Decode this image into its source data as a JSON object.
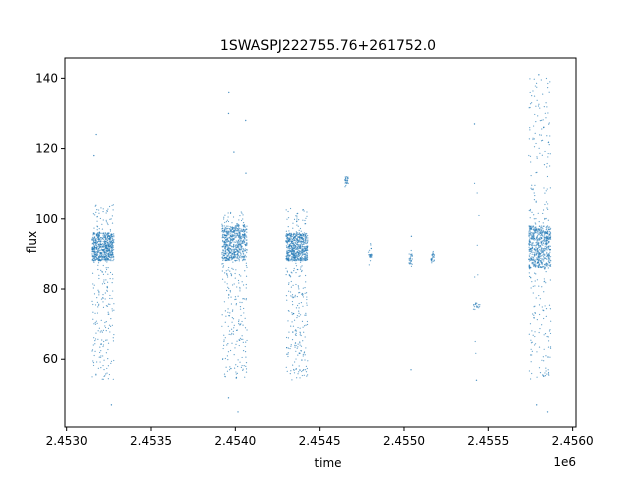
{
  "chart_data": {
    "type": "scatter",
    "title": "1SWASPJ222755.76+261752.0",
    "xlabel": "time",
    "ylabel": "flux",
    "x_offset_label": "1e6",
    "xlim": [
      2.45299,
      2.45602
    ],
    "ylim": [
      40.7,
      145.8
    ],
    "x_ticks": [
      {
        "value": 2.453,
        "label": "2.4530"
      },
      {
        "value": 2.4535,
        "label": "2.4535"
      },
      {
        "value": 2.454,
        "label": "2.4540"
      },
      {
        "value": 2.4545,
        "label": "2.4545"
      },
      {
        "value": 2.455,
        "label": "2.4550"
      },
      {
        "value": 2.4555,
        "label": "2.4555"
      },
      {
        "value": 2.456,
        "label": "2.4560"
      }
    ],
    "y_ticks": [
      {
        "value": 60,
        "label": "60"
      },
      {
        "value": 80,
        "label": "80"
      },
      {
        "value": 100,
        "label": "100"
      },
      {
        "value": 120,
        "label": "120"
      },
      {
        "value": 140,
        "label": "140"
      }
    ],
    "grid": false,
    "marker_color": "#1f77b4",
    "clusters": [
      {
        "x_range": [
          2.45315,
          2.45328
        ],
        "core_y": [
          88,
          96
        ],
        "y_range": [
          54,
          104
        ],
        "outliers_y": [
          47,
          118,
          124
        ]
      },
      {
        "x_range": [
          2.45392,
          2.45407
        ],
        "core_y": [
          88,
          98
        ],
        "y_range": [
          54,
          102
        ],
        "outliers_y": [
          45,
          49,
          113,
          119,
          128,
          130,
          136
        ]
      },
      {
        "x_range": [
          2.4543,
          2.45443
        ],
        "core_y": [
          88,
          96
        ],
        "y_range": [
          54,
          103
        ],
        "outliers_y": [
          57
        ]
      },
      {
        "x_range": [
          2.45465,
          2.45467
        ],
        "core_y": [
          110,
          112
        ],
        "y_range": [
          109,
          112
        ],
        "outliers_y": []
      },
      {
        "x_range": [
          2.45479,
          2.45481
        ],
        "core_y": [
          89,
          91
        ],
        "y_range": [
          86,
          93
        ],
        "outliers_y": []
      },
      {
        "x_range": [
          2.45503,
          2.45505
        ],
        "core_y": [
          87,
          90
        ],
        "y_range": [
          86,
          91
        ],
        "outliers_y": [
          57,
          95
        ]
      },
      {
        "x_range": [
          2.45516,
          2.45518
        ],
        "core_y": [
          88,
          90
        ],
        "y_range": [
          87,
          91
        ],
        "outliers_y": []
      },
      {
        "x_range": [
          2.45541,
          2.45545
        ],
        "core_y": [
          74,
          76
        ],
        "y_range": [
          58,
          122
        ],
        "outliers_y": [
          54,
          127
        ]
      },
      {
        "x_range": [
          2.45574,
          2.45587
        ],
        "core_y": [
          86,
          98
        ],
        "y_range": [
          54,
          140
        ],
        "outliers_y": [
          45,
          47,
          141
        ]
      }
    ]
  }
}
